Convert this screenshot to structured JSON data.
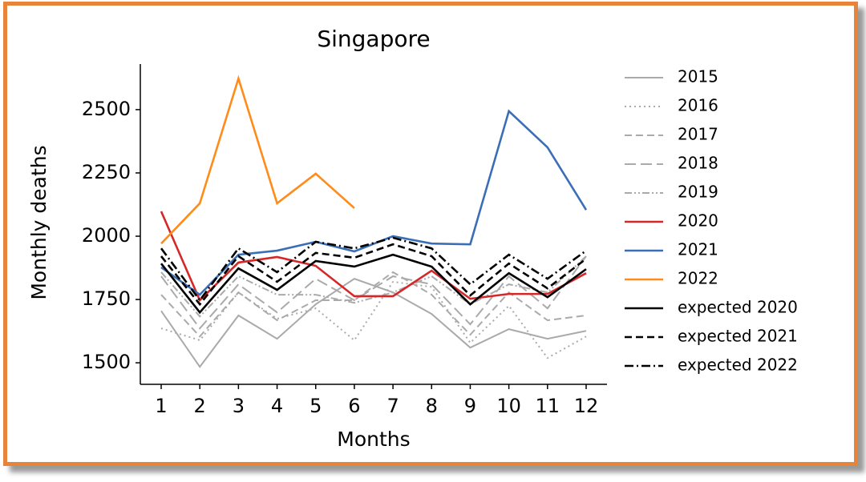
{
  "chart_data": {
    "type": "line",
    "title": "Singapore",
    "xlabel": "Months",
    "ylabel": "Monthly deaths",
    "x": [
      1,
      2,
      3,
      4,
      5,
      6,
      7,
      8,
      9,
      10,
      11,
      12
    ],
    "xlim": [
      0.46,
      12.54
    ],
    "xticks": [
      1,
      2,
      3,
      4,
      5,
      6,
      7,
      8,
      9,
      10,
      11,
      12
    ],
    "ylim": [
      1415,
      2680
    ],
    "yticks": [
      1500,
      1750,
      2000,
      2250,
      2500
    ],
    "grid": false,
    "legend": "outside right",
    "series": [
      {
        "name": "2015",
        "color": "#aaaaaa",
        "linestyle": "solid",
        "values": [
          1705,
          1484,
          1687,
          1595,
          1731,
          1832,
          1778,
          1693,
          1560,
          1633,
          1595,
          1626
        ]
      },
      {
        "name": "2016",
        "color": "#aaaaaa",
        "linestyle": "dotted",
        "values": [
          1636,
          1589,
          1778,
          1674,
          1715,
          1589,
          1820,
          1800,
          1579,
          1725,
          1519,
          1604
        ]
      },
      {
        "name": "2017",
        "color": "#aaaaaa",
        "linestyle": "dashed",
        "values": [
          1769,
          1604,
          1778,
          1668,
          1747,
          1747,
          1858,
          1769,
          1611,
          1778,
          1668,
          1687
        ]
      },
      {
        "name": "2018",
        "color": "#aaaaaa",
        "linestyle": "longdash",
        "values": [
          1842,
          1636,
          1810,
          1699,
          1832,
          1747,
          1842,
          1810,
          1652,
          1842,
          1715,
          1921
        ]
      },
      {
        "name": "2019",
        "color": "#aaaaaa",
        "linestyle": "dashdotdot",
        "values": [
          1858,
          1683,
          1842,
          1769,
          1769,
          1737,
          1778,
          1842,
          1731,
          1810,
          1778,
          1921
        ]
      },
      {
        "name": "2020",
        "color": "#d62728",
        "linestyle": "solid",
        "values": [
          2098,
          1747,
          1896,
          1918,
          1883,
          1763,
          1763,
          1864,
          1753,
          1772,
          1772,
          1854
        ]
      },
      {
        "name": "2021",
        "color": "#3a6fb7",
        "linestyle": "solid",
        "values": [
          1877,
          1769,
          1927,
          1943,
          1978,
          1940,
          2000,
          1971,
          1968,
          2494,
          2351,
          2104
        ]
      },
      {
        "name": "2022",
        "color": "#ff8c1a",
        "linestyle": "solid",
        "values": [
          1971,
          2130,
          2623,
          2130,
          2247,
          2111,
          null,
          null,
          null,
          null,
          null,
          null
        ]
      },
      {
        "name": "expected 2020",
        "color": "#000000",
        "linestyle": "solid",
        "values": [
          1892,
          1699,
          1873,
          1788,
          1902,
          1880,
          1927,
          1880,
          1731,
          1854,
          1759,
          1870
        ]
      },
      {
        "name": "expected 2021",
        "color": "#000000",
        "linestyle": "dashed",
        "values": [
          1921,
          1731,
          1921,
          1820,
          1934,
          1915,
          1968,
          1921,
          1766,
          1892,
          1794,
          1911
        ]
      },
      {
        "name": "expected 2022",
        "color": "#000000",
        "linestyle": "dashdot",
        "values": [
          1952,
          1747,
          1952,
          1858,
          1978,
          1952,
          1994,
          1952,
          1810,
          1927,
          1832,
          1943
        ]
      }
    ]
  }
}
